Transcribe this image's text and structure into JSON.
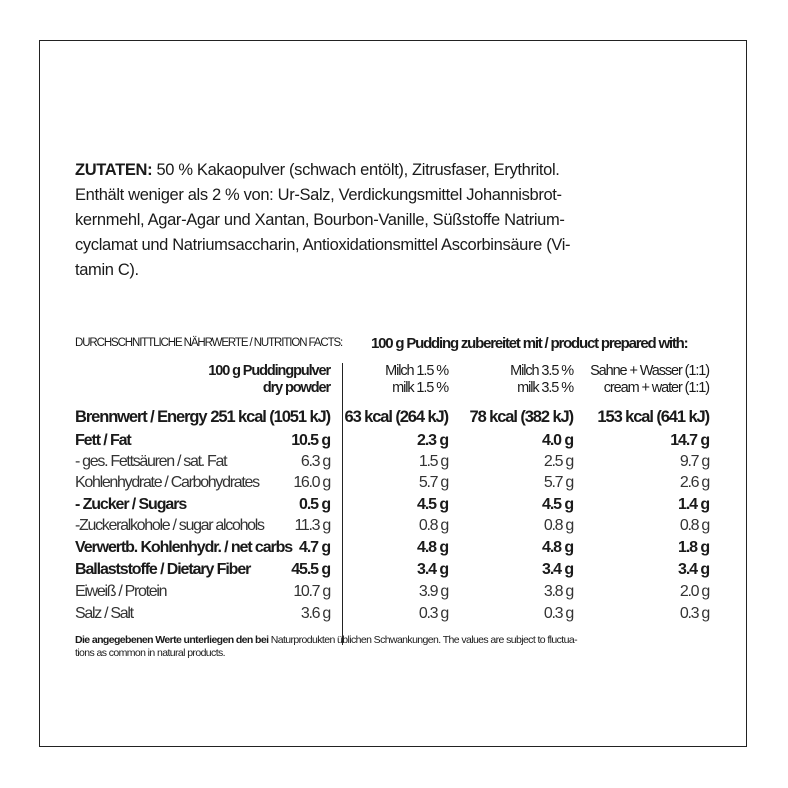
{
  "ingredients": {
    "heading": "ZUTATEN:",
    "first_line": "50 % Kakaopulver (schwach entölt), Zitrusfaser, Erythritol.",
    "lines": [
      "Enthält weniger als 2 % von: Ur-Salz, Verdickungsmittel Johannisbrot-",
      "kernmehl, Agar-Agar und Xantan, Bourbon-Vanille, Süßstoffe Natrium-",
      "cyclamat und Natriumsaccharin, Antioxidationsmittel Ascorbinsäure (Vi-",
      "tamin C)."
    ]
  },
  "nutrition": {
    "title": "DURCHSCHNITTLICHE NÄHRWERTE / NUTRITION FACTS:",
    "prepared_title": "100 g Pudding zubereitet mit / product prepared with:",
    "columns": [
      {
        "line1": "100 g Puddingpulver",
        "line2": "dry powder"
      },
      {
        "line1": "Milch 1.5 %",
        "line2": "milk 1.5 %"
      },
      {
        "line1": "Milch 3.5 %",
        "line2": "milk 3.5 %"
      },
      {
        "line1": "Sahne + Wasser (1:1)",
        "line2": "cream + water (1:1)"
      }
    ],
    "rows": [
      {
        "label": "Brennwert / Energy",
        "values": [
          "251 kcal (1051 kJ)",
          "63 kcal (264 kJ)",
          "78 kcal (382 kJ)",
          "153 kcal (641 kJ)"
        ],
        "style": "energy"
      },
      {
        "label": "Fett / Fat",
        "values": [
          "10.5 g",
          "2.3 g",
          "4.0 g",
          "14.7 g"
        ],
        "style": "bold"
      },
      {
        "label": "- ges. Fettsäuren / sat. Fat",
        "values": [
          "6.3 g",
          "1.5 g",
          "2.5 g",
          "9.7 g"
        ],
        "style": "norm"
      },
      {
        "label": "Kohlenhydrate / Carbohydrates",
        "values": [
          "16.0 g",
          "5.7 g",
          "5.7 g",
          "2.6 g"
        ],
        "style": "norm"
      },
      {
        "label": "- Zucker / Sugars",
        "values": [
          "0.5 g",
          "4.5 g",
          "4.5 g",
          "1.4 g"
        ],
        "style": "bold"
      },
      {
        "label": "-Zuckeralkohole / sugar alcohols",
        "values": [
          "11.3 g",
          "0.8 g",
          "0.8 g",
          "0.8 g"
        ],
        "style": "norm"
      },
      {
        "label": "Verwertb. Kohlenhydr. / net carbs",
        "values": [
          "4.7 g",
          "4.8 g",
          "4.8 g",
          "1.8 g"
        ],
        "style": "bold"
      },
      {
        "label": "Ballaststoffe / Dietary Fiber",
        "values": [
          "45.5 g",
          "3.4 g",
          "3.4 g",
          "3.4 g"
        ],
        "style": "bold"
      },
      {
        "label": "Eiweiß / Protein",
        "values": [
          "10.7 g",
          "3.9 g",
          "3.8 g",
          "2.0 g"
        ],
        "style": "norm"
      },
      {
        "label": "Salz / Salt",
        "values": [
          "3.6 g",
          "0.3 g",
          "0.3 g",
          "0.3 g"
        ],
        "style": "norm"
      }
    ],
    "footnote_bold": "Die angegebenen Werte unterliegen den bei",
    "footnote_rest": " Naturprodukten üblichen Schwankungen. The values are subject to fluctua-",
    "footnote_line2": "tions as common in natural products."
  }
}
